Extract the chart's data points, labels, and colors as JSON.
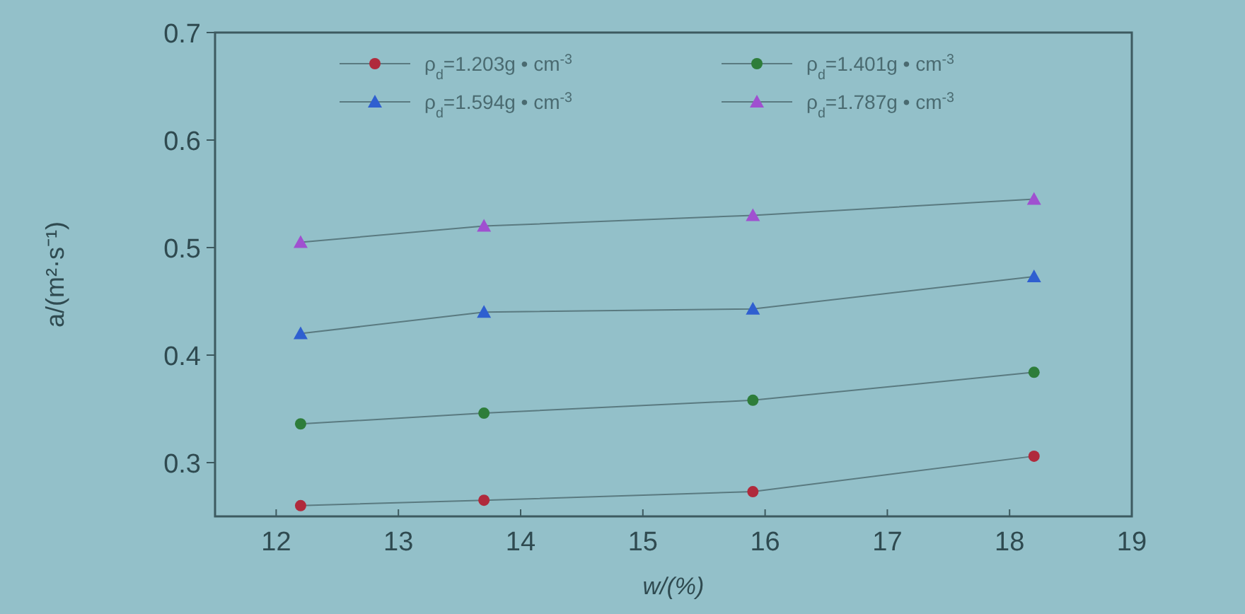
{
  "chart_data": {
    "type": "line",
    "xlabel": "w/(%)",
    "ylabel": "a/(m²·s⁻¹)",
    "xlim": [
      11.5,
      19
    ],
    "xticks": [
      12,
      13,
      14,
      15,
      16,
      17,
      18,
      19
    ],
    "ylim": [
      0.25,
      0.7
    ],
    "yticks": [
      0.3,
      0.4,
      0.5,
      0.6,
      0.7
    ],
    "x": [
      12.2,
      13.7,
      15.9,
      18.2
    ],
    "legend": "top",
    "grid": false,
    "marker": "circle",
    "line_style": "solid",
    "series": [
      {
        "name": "ρ$_{d}$=1.203g • cm$^{-3}$",
        "color": "#b02a3c",
        "marker": "circle",
        "values": [
          0.26,
          0.265,
          0.273,
          0.306
        ]
      },
      {
        "name": "ρ$_{d}$=1.401g • cm$^{-3}$",
        "color": "#2e7d3a",
        "marker": "circle",
        "values": [
          0.336,
          0.346,
          0.358,
          0.384
        ]
      },
      {
        "name": "ρ$_{d}$=1.594g • cm$^{-3}$",
        "color": "#2f5fd0",
        "marker": "triangle",
        "values": [
          0.42,
          0.44,
          0.443,
          0.473
        ]
      },
      {
        "name": "ρ$_{d}$=1.787g • cm$^{-3}$",
        "color": "#a050d0",
        "marker": "triangle",
        "values": [
          0.505,
          0.52,
          0.53,
          0.545
        ]
      }
    ]
  }
}
